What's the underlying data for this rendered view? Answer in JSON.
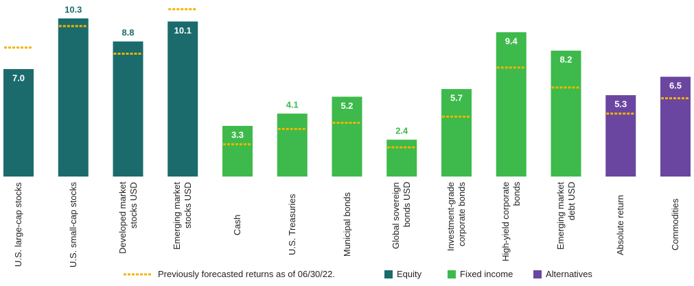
{
  "chart_data": {
    "type": "bar",
    "categories": [
      "U.S. large-cap stocks",
      "U.S. small-cap stocks",
      "Developed market stocks USD",
      "Emerging market stocks USD",
      "Cash",
      "U.S. Treasuries",
      "Municipal bonds",
      "Global sovereign bonds USD",
      "Investment-grade corporate bonds",
      "High-yield corporate bonds",
      "Emerging market debt USD",
      "Absolute return",
      "Commodities"
    ],
    "series": [
      {
        "name": "Equity",
        "color": "#1b6b6c",
        "values": [
          7.0,
          10.3,
          8.8,
          10.1,
          null,
          null,
          null,
          null,
          null,
          null,
          null,
          null,
          null
        ],
        "value_labels": [
          "7.0",
          "10.3",
          "8.8",
          "10.1",
          null,
          null,
          null,
          null,
          null,
          null,
          null,
          null,
          null
        ]
      },
      {
        "name": "Fixed income",
        "color": "#3dba4b",
        "values": [
          null,
          null,
          null,
          null,
          3.3,
          4.1,
          5.2,
          2.4,
          5.7,
          9.4,
          8.2,
          null,
          null
        ]
      },
      {
        "name": "Alternatives",
        "color": "#6a46a0",
        "values": [
          null,
          null,
          null,
          null,
          null,
          null,
          null,
          null,
          null,
          null,
          null,
          5.3,
          6.5
        ]
      }
    ],
    "forecast_markers": {
      "name": "Previously forecasted returns as of 06/30/22.",
      "color": "#f5b400",
      "values": [
        8.4,
        9.8,
        8.0,
        10.9,
        2.1,
        3.1,
        3.5,
        1.9,
        3.9,
        7.1,
        5.8,
        4.1,
        5.1
      ]
    },
    "ylim": [
      0,
      11.5
    ]
  }
}
